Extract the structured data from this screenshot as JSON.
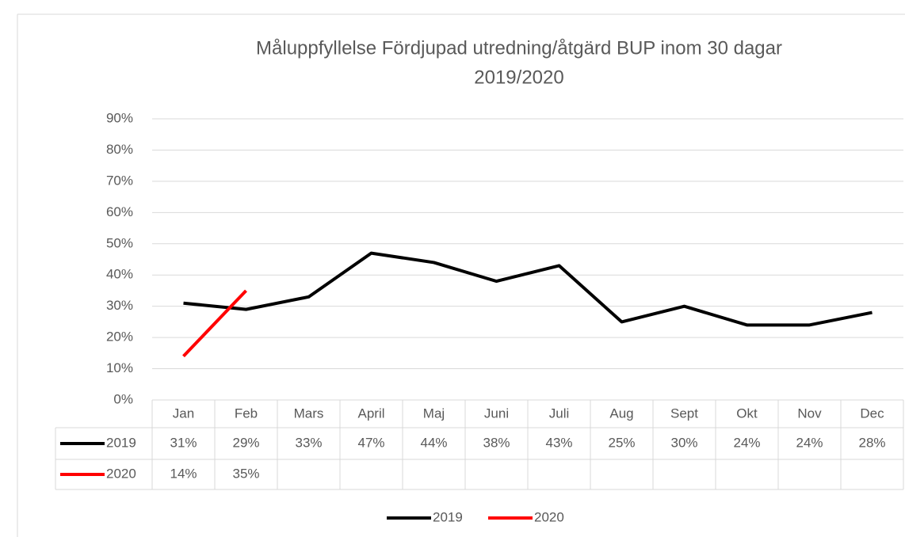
{
  "chart_data": {
    "type": "line",
    "title": [
      "Måluppfyllelse Fördjupad utredning/åtgärd BUP inom 30 dagar",
      "2019/2020"
    ],
    "categories": [
      "Jan",
      "Feb",
      "Mars",
      "April",
      "Maj",
      "Juni",
      "Juli",
      "Aug",
      "Sept",
      "Okt",
      "Nov",
      "Dec"
    ],
    "series": [
      {
        "name": "2019",
        "color": "#000000",
        "values": [
          31,
          29,
          33,
          47,
          44,
          38,
          43,
          25,
          30,
          24,
          24,
          28
        ],
        "value_labels": [
          "31%",
          "29%",
          "33%",
          "47%",
          "44%",
          "38%",
          "43%",
          "25%",
          "30%",
          "24%",
          "24%",
          "28%"
        ]
      },
      {
        "name": "2020",
        "color": "#ff0000",
        "values": [
          14,
          35,
          null,
          null,
          null,
          null,
          null,
          null,
          null,
          null,
          null,
          null
        ],
        "value_labels": [
          "14%",
          "35%",
          null,
          null,
          null,
          null,
          null,
          null,
          null,
          null,
          null,
          null
        ]
      }
    ],
    "ylim": [
      0,
      90
    ],
    "yticks": [
      {
        "value": 0,
        "label": "0%"
      },
      {
        "value": 10,
        "label": "10%"
      },
      {
        "value": 20,
        "label": "20%"
      },
      {
        "value": 30,
        "label": "30%"
      },
      {
        "value": 40,
        "label": "40%"
      },
      {
        "value": 50,
        "label": "50%"
      },
      {
        "value": 60,
        "label": "60%"
      },
      {
        "value": 70,
        "label": "70%"
      },
      {
        "value": 80,
        "label": "80%"
      },
      {
        "value": 90,
        "label": "90%"
      }
    ],
    "grid": true,
    "legend": "bottom"
  }
}
